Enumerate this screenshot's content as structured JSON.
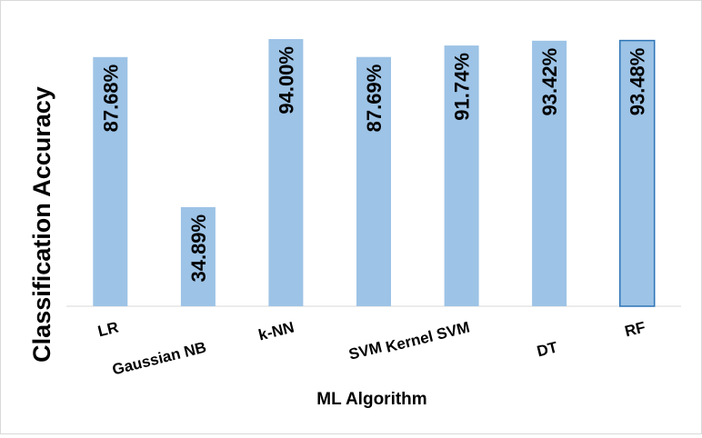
{
  "chart_data": {
    "type": "bar",
    "categories": [
      "LR",
      "Gaussian NB",
      "k-NN",
      "SVM",
      "Kernel SVM",
      "DT",
      "RF"
    ],
    "values": [
      87.68,
      34.89,
      94.0,
      87.69,
      91.74,
      93.42,
      93.48
    ],
    "data_labels": [
      "87.68%",
      "34.89%",
      "94.00%",
      "87.69%",
      "91.74%",
      "93.42%",
      "93.48%"
    ],
    "title": "",
    "xlabel": "ML Algorithm",
    "ylabel": "Classification  Accuracy",
    "ylim": [
      0,
      100
    ],
    "grid": false,
    "legend": "none",
    "bar_color": "#9dc3e6",
    "highlight_border_color": "#2e75b6"
  }
}
